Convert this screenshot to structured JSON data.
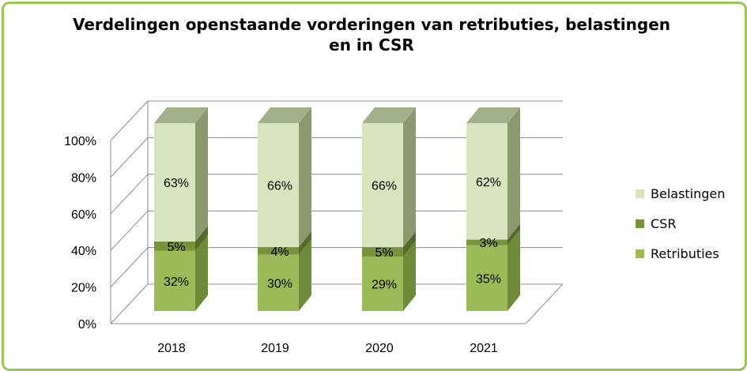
{
  "chart_data": {
    "type": "bar",
    "subtype": "stacked-100-3d",
    "title": "Verdelingen openstaande vorderingen van retributies, belastingen en in CSR",
    "categories": [
      "2018",
      "2019",
      "2020",
      "2021"
    ],
    "series": [
      {
        "name": "Retributies",
        "values": [
          32,
          30,
          29,
          35
        ],
        "labels": [
          "32%",
          "30%",
          "29%",
          "35%"
        ]
      },
      {
        "name": "CSR",
        "values": [
          5,
          4,
          5,
          3
        ],
        "labels": [
          "5%",
          "4%",
          "5%",
          "3%"
        ]
      },
      {
        "name": "Belastingen",
        "values": [
          63,
          66,
          66,
          62
        ],
        "labels": [
          "63%",
          "66%",
          "66%",
          "62%"
        ]
      }
    ],
    "y_ticks": [
      "0%",
      "20%",
      "40%",
      "60%",
      "80%",
      "100%"
    ],
    "ylim": [
      0,
      100
    ],
    "grid": true,
    "legend_position": "right",
    "colors": {
      "Retributies": {
        "front": "#9bbb59",
        "side": "#6f8a38",
        "top": "#7e9c44"
      },
      "CSR": {
        "front": "#77933c",
        "side": "#55692a",
        "top": "#647c33"
      },
      "Belastingen": {
        "front": "#d7e4bd",
        "side": "#8b9a6e",
        "top": "#a3b18a"
      }
    },
    "frame_color": "#9bc45b"
  }
}
